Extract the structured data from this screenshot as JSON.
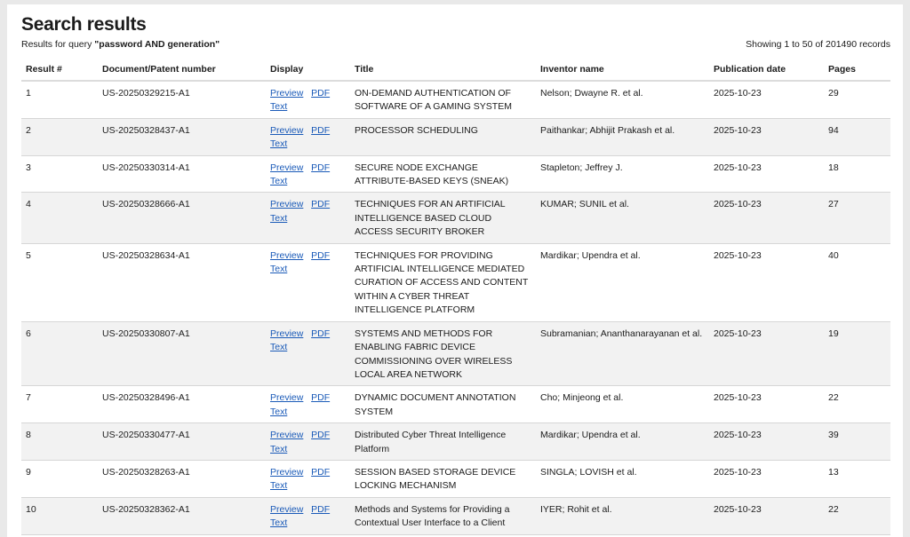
{
  "header": {
    "title": "Search results",
    "query_prefix": "Results for query ",
    "query": "\"password AND generation\"",
    "showing": "Showing 1 to 50 of 201490 records"
  },
  "columns": [
    "Result #",
    "Document/Patent number",
    "Display",
    "Title",
    "Inventor name",
    "Publication date",
    "Pages"
  ],
  "links": {
    "preview": "Preview",
    "pdf": "PDF",
    "text": "Text"
  },
  "rows": [
    {
      "n": "1",
      "doc": "US-20250329215-A1",
      "title": "ON-DEMAND AUTHENTICATION OF SOFTWARE OF A GAMING SYSTEM",
      "inventor": "Nelson; Dwayne R. et al.",
      "date": "2025-10-23",
      "pages": "29"
    },
    {
      "n": "2",
      "doc": "US-20250328437-A1",
      "title": "PROCESSOR SCHEDULING",
      "inventor": "Paithankar; Abhijit Prakash et al.",
      "date": "2025-10-23",
      "pages": "94"
    },
    {
      "n": "3",
      "doc": "US-20250330314-A1",
      "title": "SECURE NODE EXCHANGE ATTRIBUTE-BASED KEYS (SNEAK)",
      "inventor": "Stapleton; Jeffrey J.",
      "date": "2025-10-23",
      "pages": "18"
    },
    {
      "n": "4",
      "doc": "US-20250328666-A1",
      "title": "TECHNIQUES FOR AN ARTIFICIAL INTELLIGENCE BASED CLOUD ACCESS SECURITY BROKER",
      "inventor": "KUMAR; SUNIL et al.",
      "date": "2025-10-23",
      "pages": "27"
    },
    {
      "n": "5",
      "doc": "US-20250328634-A1",
      "title": "TECHNIQUES FOR PROVIDING ARTIFICIAL INTELLIGENCE MEDIATED CURATION OF ACCESS AND CONTENT WITHIN A CYBER THREAT INTELLIGENCE PLATFORM",
      "inventor": "Mardikar; Upendra et al.",
      "date": "2025-10-23",
      "pages": "40"
    },
    {
      "n": "6",
      "doc": "US-20250330807-A1",
      "title": "SYSTEMS AND METHODS FOR ENABLING FABRIC DEVICE COMMISSIONING OVER WIRELESS LOCAL AREA NETWORK",
      "inventor": "Subramanian; Ananthanarayanan et al.",
      "date": "2025-10-23",
      "pages": "19"
    },
    {
      "n": "7",
      "doc": "US-20250328496-A1",
      "title": "DYNAMIC DOCUMENT ANNOTATION SYSTEM",
      "inventor": "Cho; Minjeong et al.",
      "date": "2025-10-23",
      "pages": "22"
    },
    {
      "n": "8",
      "doc": "US-20250330477-A1",
      "title": "Distributed Cyber Threat Intelligence Platform",
      "inventor": "Mardikar; Upendra et al.",
      "date": "2025-10-23",
      "pages": "39"
    },
    {
      "n": "9",
      "doc": "US-20250328263-A1",
      "title": "SESSION BASED STORAGE DEVICE LOCKING MECHANISM",
      "inventor": "SINGLA; LOVISH et al.",
      "date": "2025-10-23",
      "pages": "13"
    },
    {
      "n": "10",
      "doc": "US-20250328362-A1",
      "title": "Methods and Systems for Providing a Contextual User Interface to a Client",
      "inventor": "IYER; Rohit et al.",
      "date": "2025-10-23",
      "pages": "22"
    }
  ]
}
